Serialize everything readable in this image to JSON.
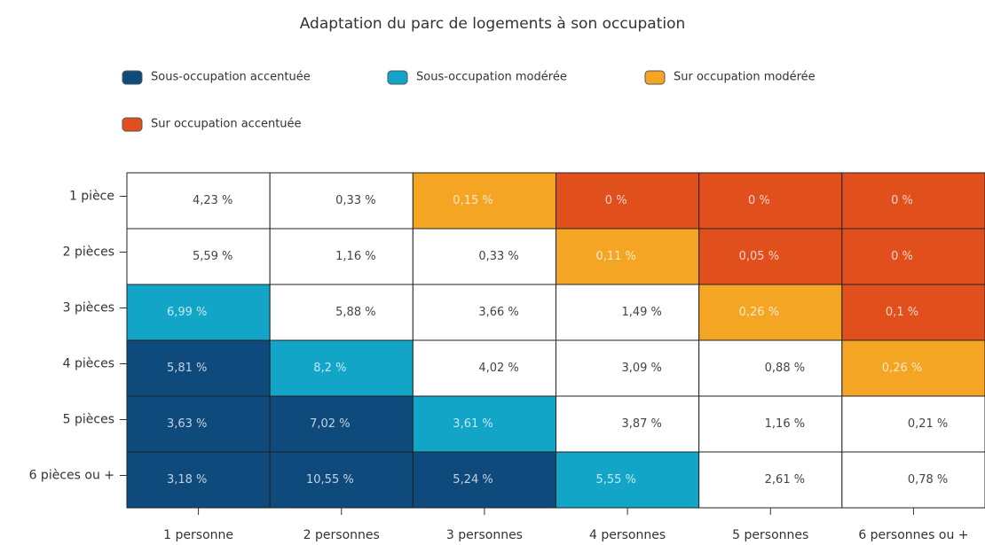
{
  "chart_data": {
    "type": "heatmap",
    "title": "Adaptation du parc de logements à son occupation",
    "series": [
      {
        "name": "Sous-occupation accentuée",
        "color": "#0e4a7b"
      },
      {
        "name": "Sous-occupation modérée",
        "color": "#12a5c8"
      },
      {
        "name": "Sur occupation modérée",
        "color": "#f5a524"
      },
      {
        "name": "Sur occupation accentuée",
        "color": "#e1501c"
      }
    ],
    "x_categories": [
      "1 personne",
      "2 personnes",
      "3 personnes",
      "4 personnes",
      "5 personnes",
      "6 personnes ou +"
    ],
    "y_categories": [
      "1 pièce",
      "2 pièces",
      "3 pièces",
      "4 pièces",
      "5 pièces",
      "6 pièces ou +"
    ],
    "values": [
      [
        4.23,
        0.33,
        0.15,
        0,
        0,
        0
      ],
      [
        5.59,
        1.16,
        0.33,
        0.11,
        0.05,
        0
      ],
      [
        6.99,
        5.88,
        3.66,
        1.49,
        0.26,
        0.1
      ],
      [
        5.81,
        8.2,
        4.02,
        3.09,
        0.88,
        0.26
      ],
      [
        3.63,
        7.02,
        3.61,
        3.87,
        1.16,
        0.21
      ],
      [
        3.18,
        10.55,
        5.24,
        5.55,
        2.61,
        0.78
      ]
    ],
    "value_labels": [
      [
        "4,23 %",
        "0,33 %",
        "0,15 %",
        "0 %",
        "0 %",
        "0 %"
      ],
      [
        "5,59 %",
        "1,16 %",
        "0,33 %",
        "0,11 %",
        "0,05 %",
        "0 %"
      ],
      [
        "6,99 %",
        "5,88 %",
        "3,66 %",
        "1,49 %",
        "0,26 %",
        "0,1 %"
      ],
      [
        "5,81 %",
        "8,2 %",
        "4,02 %",
        "3,09 %",
        "0,88 %",
        "0,26 %"
      ],
      [
        "3,63 %",
        "7,02 %",
        "3,61 %",
        "3,87 %",
        "1,16 %",
        "0,21 %"
      ],
      [
        "3,18 %",
        "10,55 %",
        "5,24 %",
        "5,55 %",
        "2,61 %",
        "0,78 %"
      ]
    ],
    "colors": [
      [
        "#ffffff",
        "#ffffff",
        "#f5a524",
        "#e1501c",
        "#e1501c",
        "#e1501c"
      ],
      [
        "#ffffff",
        "#ffffff",
        "#ffffff",
        "#f5a524",
        "#e1501c",
        "#e1501c"
      ],
      [
        "#12a5c8",
        "#ffffff",
        "#ffffff",
        "#ffffff",
        "#f5a524",
        "#e1501c"
      ],
      [
        "#0e4a7b",
        "#12a5c8",
        "#ffffff",
        "#ffffff",
        "#ffffff",
        "#f5a524"
      ],
      [
        "#0e4a7b",
        "#0e4a7b",
        "#12a5c8",
        "#ffffff",
        "#ffffff",
        "#ffffff"
      ],
      [
        "#0e4a7b",
        "#0e4a7b",
        "#0e4a7b",
        "#12a5c8",
        "#ffffff",
        "#ffffff"
      ]
    ]
  }
}
